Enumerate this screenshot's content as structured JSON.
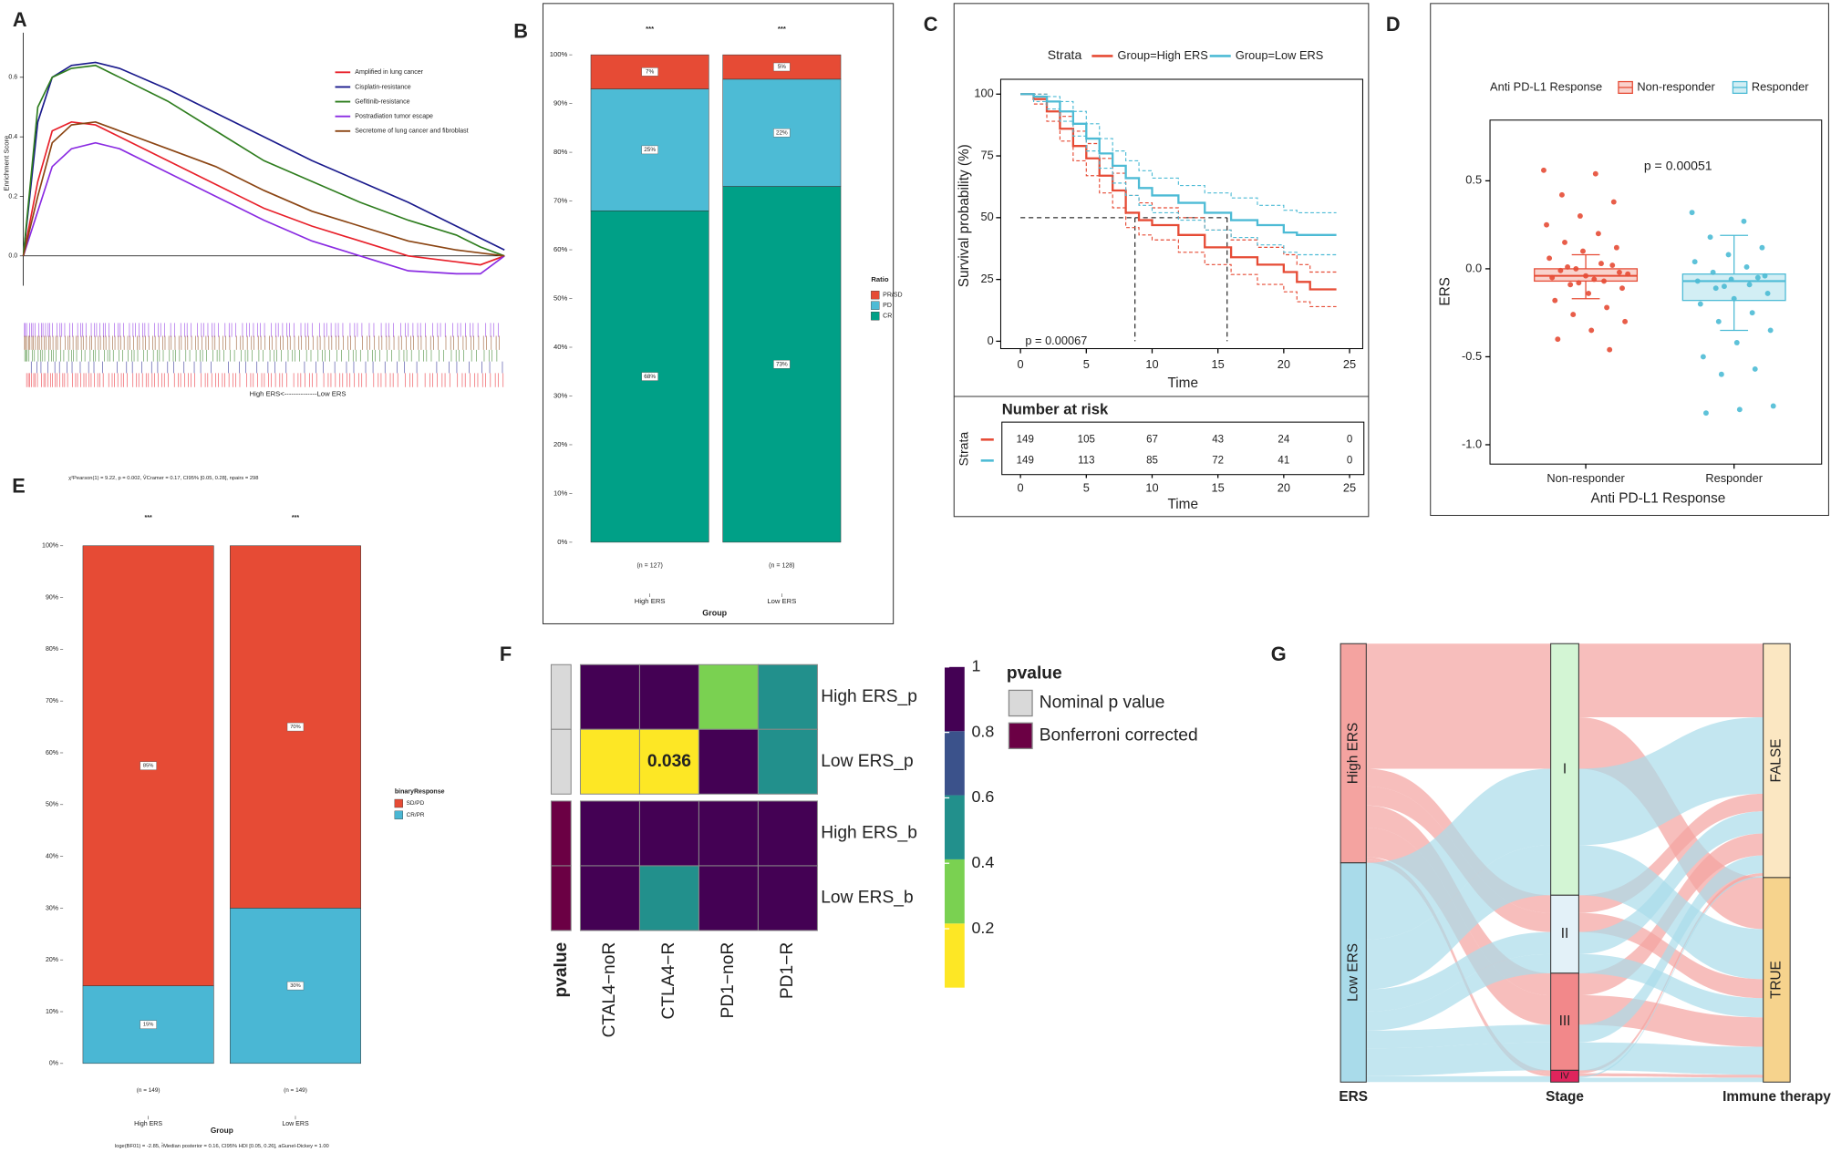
{
  "chart_data": [
    {
      "panel": "A",
      "type": "line",
      "ylabel": "Enrichment Score",
      "xlabel": "High ERS<--------------Low ERS",
      "x": [
        0,
        3,
        6,
        10,
        15,
        20,
        30,
        40,
        50,
        60,
        70,
        80,
        90,
        95,
        100
      ],
      "xlim": [
        0,
        100
      ],
      "ylim": [
        -0.1,
        0.75
      ],
      "yticks": [
        {
          "value": 0,
          "label": "0.0"
        },
        0.2,
        0.4,
        0.6
      ],
      "series": [
        {
          "name": "Amplified in lung cancer",
          "color": "#e8202a",
          "values": [
            0,
            0.25,
            0.42,
            0.45,
            0.44,
            0.4,
            0.32,
            0.24,
            0.16,
            0.1,
            0.05,
            0.0,
            -0.02,
            -0.03,
            0
          ]
        },
        {
          "name": "Cisplatin-resistance",
          "color": "#1a1a8c",
          "values": [
            0,
            0.45,
            0.6,
            0.64,
            0.65,
            0.63,
            0.56,
            0.48,
            0.4,
            0.32,
            0.25,
            0.18,
            0.1,
            0.06,
            0.02
          ]
        },
        {
          "name": "Gefitinib-resistance",
          "color": "#2e7d1e",
          "values": [
            0,
            0.5,
            0.6,
            0.63,
            0.64,
            0.6,
            0.52,
            0.42,
            0.32,
            0.25,
            0.18,
            0.12,
            0.07,
            0.03,
            0.0
          ]
        },
        {
          "name": "Postradiation tumor escape",
          "color": "#8a2be2",
          "values": [
            0,
            0.15,
            0.3,
            0.36,
            0.38,
            0.36,
            0.28,
            0.2,
            0.12,
            0.05,
            0.0,
            -0.05,
            -0.06,
            -0.06,
            0
          ]
        },
        {
          "name": "Secretome of lung cancer and fibroblast",
          "color": "#8b4513",
          "values": [
            0,
            0.2,
            0.38,
            0.44,
            0.45,
            0.42,
            0.36,
            0.3,
            0.22,
            0.15,
            0.1,
            0.05,
            0.02,
            0.01,
            0
          ]
        }
      ]
    },
    {
      "panel": "B",
      "type": "stacked_bar",
      "xlabel": "Group",
      "legend_title": "Ratio",
      "categories": [
        "High ERS",
        "Low ERS"
      ],
      "annotations": [
        "***",
        "***"
      ],
      "count_labels": [
        "(n = 127)",
        "(n = 128)"
      ],
      "ylim": [
        0,
        100
      ],
      "yticks": [
        {
          "value": 0,
          "label": "0%"
        },
        {
          "value": 10,
          "label": "10%"
        },
        {
          "value": 20,
          "label": "20%"
        },
        {
          "value": 30,
          "label": "30%"
        },
        {
          "value": 40,
          "label": "40%"
        },
        {
          "value": 50,
          "label": "50%"
        },
        {
          "value": 60,
          "label": "60%"
        },
        {
          "value": 70,
          "label": "70%"
        },
        {
          "value": 80,
          "label": "80%"
        },
        {
          "value": 90,
          "label": "90%"
        },
        {
          "value": 100,
          "label": "100%"
        }
      ],
      "series": [
        {
          "name": "CR",
          "color": "#00a087",
          "values": [
            68,
            73
          ],
          "value_labels": [
            "68%",
            "73%"
          ]
        },
        {
          "name": "PD",
          "color": "#4dbbd5",
          "values": [
            25,
            22
          ],
          "value_labels": [
            "25%",
            "22%"
          ]
        },
        {
          "name": "PR/SD",
          "color": "#e64b35",
          "values": [
            7,
            5
          ],
          "value_labels": [
            "7%",
            "5%"
          ]
        }
      ]
    },
    {
      "panel": "C",
      "type": "survival",
      "legend_title": "Strata",
      "xlabel": "Time",
      "ylabel": "Survival probability (%)",
      "annotation": "p = 0.00067",
      "risk_table_title": "Number at risk",
      "x": [
        0,
        1,
        2,
        3,
        4,
        5,
        6,
        7,
        8,
        9,
        10,
        12,
        14,
        16,
        18,
        20,
        21,
        22,
        24
      ],
      "xlim": [
        -1.5,
        26
      ],
      "xticks": [
        0,
        5,
        10,
        15,
        20,
        25
      ],
      "ylim": [
        -3,
        106
      ],
      "yticks": [
        0,
        25,
        50,
        75,
        100
      ],
      "median_level": 50,
      "medians": [
        8.7,
        15.7
      ],
      "series": [
        {
          "name": "Group=High ERS",
          "color": "#e64b35",
          "values": [
            100,
            98,
            93,
            86,
            79,
            74,
            67,
            61,
            52,
            49,
            47,
            43,
            38,
            34,
            31,
            28,
            24,
            21,
            21
          ],
          "lower": [
            100,
            96,
            89,
            81,
            73,
            67,
            60,
            54,
            46,
            43,
            41,
            36,
            31,
            27,
            23,
            20,
            16,
            14,
            14
          ],
          "upper": [
            100,
            100,
            97,
            91,
            85,
            80,
            74,
            68,
            59,
            56,
            54,
            50,
            45,
            41,
            38,
            35,
            31,
            28,
            28
          ],
          "at_risk": [
            149,
            105,
            67,
            43,
            24,
            0
          ]
        },
        {
          "name": "Group=Low ERS",
          "color": "#4dbbd5",
          "values": [
            100,
            99,
            97,
            93,
            88,
            82,
            76,
            71,
            66,
            62,
            59,
            56,
            52,
            49,
            47,
            44,
            43,
            43,
            43
          ],
          "lower": [
            100,
            97,
            94,
            89,
            83,
            77,
            70,
            64,
            59,
            55,
            52,
            49,
            45,
            42,
            39,
            36,
            35,
            35,
            35
          ],
          "upper": [
            100,
            100,
            99,
            97,
            93,
            88,
            82,
            77,
            73,
            69,
            66,
            63,
            60,
            58,
            55,
            53,
            52,
            52,
            52
          ],
          "at_risk": [
            149,
            113,
            85,
            72,
            41,
            0
          ]
        }
      ]
    },
    {
      "panel": "D",
      "type": "box",
      "legend_title": "Anti PD-L1 Response",
      "xlabel": "Anti PD-L1 Response",
      "ylabel": "ERS",
      "annotation": "p = 0.00051",
      "categories": [
        "Non-responder",
        "Responder"
      ],
      "colors": [
        "#e64b35",
        "#4dbbd5"
      ],
      "ylim": [
        -1.11,
        0.845
      ],
      "yticks": [
        {
          "value": -1,
          "label": "-1.0"
        },
        -0.5,
        {
          "value": 0,
          "label": "0.0"
        },
        0.5
      ],
      "boxes": [
        [
          -0.17,
          -0.07,
          -0.04,
          0.0,
          0.08
        ],
        [
          -0.35,
          -0.18,
          -0.07,
          -0.03,
          0.19
        ]
      ],
      "points": [
        [
          0.56,
          0.54,
          0.42,
          0.38,
          0.3,
          0.25,
          0.2,
          0.15,
          0.12,
          0.1,
          0.06,
          0.03,
          0.01,
          -0.02,
          -0.04,
          -0.05,
          -0.07,
          -0.09,
          -0.11,
          -0.14,
          -0.18,
          -0.22,
          -0.26,
          -0.3,
          -0.35,
          -0.4,
          -0.46,
          0.0,
          -0.03,
          -0.06,
          -0.01,
          0.02,
          -0.08
        ],
        [
          0.32,
          0.27,
          0.18,
          0.12,
          0.08,
          0.04,
          0.01,
          -0.02,
          -0.04,
          -0.06,
          -0.07,
          -0.09,
          -0.11,
          -0.14,
          -0.17,
          -0.2,
          -0.25,
          -0.3,
          -0.35,
          -0.42,
          -0.5,
          -0.57,
          -0.6,
          -0.78,
          -0.8,
          -0.82,
          -0.05,
          -0.1
        ]
      ]
    },
    {
      "panel": "E",
      "type": "stacked_bar",
      "xlabel": "Group",
      "legend_title": "binaryResponse",
      "subtitle": "χ²Pearson(1) = 9.22, p = 0.002, V̂Cramer = 0.17, CI95% [0.05, 0.28], npairs = 298",
      "caption": "loge(BF01) = -2.85, r̂Median posterior = 0.16, CI95% HDI [0.05, 0.26], aGunel-Dickey = 1.00",
      "categories": [
        "High ERS",
        "Low ERS"
      ],
      "annotations": [
        "***",
        "***"
      ],
      "count_labels": [
        "(n = 149)",
        "(n = 149)"
      ],
      "ylim": [
        0,
        100
      ],
      "yticks": [
        {
          "value": 0,
          "label": "0%"
        },
        {
          "value": 10,
          "label": "10%"
        },
        {
          "value": 20,
          "label": "20%"
        },
        {
          "value": 30,
          "label": "30%"
        },
        {
          "value": 40,
          "label": "40%"
        },
        {
          "value": 50,
          "label": "50%"
        },
        {
          "value": 60,
          "label": "60%"
        },
        {
          "value": 70,
          "label": "70%"
        },
        {
          "value": 80,
          "label": "80%"
        },
        {
          "value": 90,
          "label": "90%"
        },
        {
          "value": 100,
          "label": "100%"
        }
      ],
      "series": [
        {
          "name": "CR/PR",
          "color": "#4ab7d4",
          "values": [
            15,
            30
          ],
          "value_labels": [
            "15%",
            "30%"
          ]
        },
        {
          "name": "SD/PD",
          "color": "#e64b35",
          "values": [
            85,
            70
          ],
          "value_labels": [
            "85%",
            "70%"
          ]
        }
      ]
    },
    {
      "panel": "F",
      "type": "heatmap",
      "legend_title": "pvalue",
      "annotation_label": "pvalue",
      "rows": [
        "High ERS_p",
        "Low ERS_p",
        "High ERS_b",
        "Low ERS_b"
      ],
      "columns": [
        "CTAL4−noR",
        "CTLA4−R",
        "PD1−noR",
        "PD1−R"
      ],
      "values": [
        [
          1,
          1,
          0.3,
          0.5
        ],
        [
          0.05,
          0.036,
          1,
          0.5
        ],
        [
          1,
          1,
          1,
          1
        ],
        [
          1,
          0.5,
          1,
          1
        ]
      ],
      "value_labels": [
        [
          null,
          null,
          null,
          null
        ],
        [
          null,
          "0.036",
          null,
          null
        ],
        [
          null,
          null,
          null,
          null
        ],
        [
          null,
          null,
          null,
          null
        ]
      ],
      "zlim": [
        0.02,
        1
      ],
      "colors": [
        "#fde725",
        "#7ad151",
        "#22908c",
        "#3b528b",
        "#440154"
      ],
      "colorbar_ticks": [
        0.2,
        0.4,
        0.6,
        0.8,
        1
      ],
      "groups": [
        {
          "name": "Nominal p value",
          "color": "#d9d9d9"
        },
        {
          "name": "Bonferroni corrected",
          "color": "#6b0044"
        }
      ],
      "row_group": [
        0,
        0,
        1,
        1
      ]
    },
    {
      "panel": "G",
      "type": "alluvial",
      "axes": [
        "ERS",
        "Stage",
        "Immune therapy"
      ],
      "strata": [
        [
          {
            "name": "High ERS",
            "color": "#f4a3a0"
          },
          {
            "name": "Low ERS",
            "color": "#a9dbea"
          }
        ],
        [
          {
            "name": "I",
            "color": "#d3f5d4"
          },
          {
            "name": "II",
            "color": "#e3f1f8"
          },
          {
            "name": "III",
            "color": "#f2888a"
          },
          {
            "name": "IV",
            "color": "#e0245c"
          }
        ],
        [
          {
            "name": "FALSE",
            "color": "#fbe7c2"
          },
          {
            "name": "TRUE",
            "color": "#f6d38d"
          }
        ]
      ],
      "flows": [
        {
          "path": [
            0,
            0,
            0
          ],
          "value": 50
        },
        {
          "path": [
            0,
            0,
            1
          ],
          "value": 35
        },
        {
          "path": [
            0,
            1,
            0
          ],
          "value": 12
        },
        {
          "path": [
            0,
            1,
            1
          ],
          "value": 13
        },
        {
          "path": [
            0,
            2,
            0
          ],
          "value": 15
        },
        {
          "path": [
            0,
            2,
            1
          ],
          "value": 20
        },
        {
          "path": [
            0,
            3,
            0
          ],
          "value": 2
        },
        {
          "path": [
            0,
            3,
            1
          ],
          "value": 2
        },
        {
          "path": [
            1,
            0,
            0
          ],
          "value": 52
        },
        {
          "path": [
            1,
            0,
            1
          ],
          "value": 34
        },
        {
          "path": [
            1,
            1,
            0
          ],
          "value": 15
        },
        {
          "path": [
            1,
            1,
            1
          ],
          "value": 13
        },
        {
          "path": [
            1,
            2,
            0
          ],
          "value": 12
        },
        {
          "path": [
            1,
            2,
            1
          ],
          "value": 19
        },
        {
          "path": [
            1,
            3,
            0
          ],
          "value": 1
        },
        {
          "path": [
            1,
            3,
            1
          ],
          "value": 3
        }
      ]
    }
  ]
}
